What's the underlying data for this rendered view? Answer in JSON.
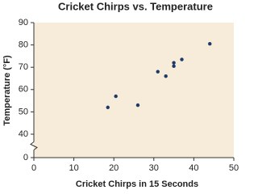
{
  "chart_data": {
    "type": "scatter",
    "title": "Cricket Chirps vs. Temperature",
    "x_label": "Cricket Chirps in 15 Seconds",
    "y_label": "Temperature (°F)",
    "series": [
      {
        "color": "#1d3a66",
        "x": [
          18.5,
          20.5,
          26,
          31,
          33,
          35,
          35,
          37,
          44
        ],
        "values": [
          52,
          57,
          53,
          68,
          66,
          70.5,
          72,
          73.5,
          80.5
        ]
      }
    ],
    "xlim": [
      0,
      50
    ],
    "xticks": [
      0,
      10,
      20,
      30,
      40,
      50
    ],
    "ylim": [
      0,
      90
    ],
    "yticks": [
      0,
      40,
      50,
      60,
      70,
      80,
      90
    ],
    "y_break": [
      0,
      40
    ],
    "background": "#f6ecd9"
  }
}
